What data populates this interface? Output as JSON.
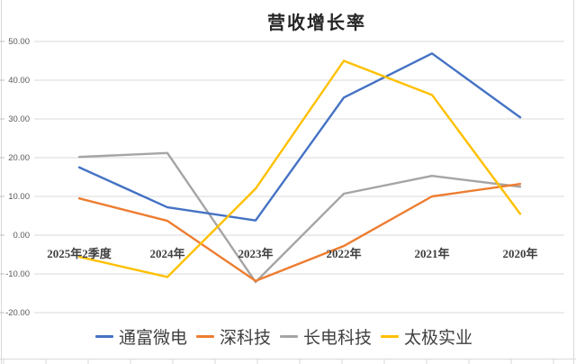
{
  "chart_data": {
    "type": "line",
    "title": "营收增长率",
    "xlabel": "",
    "ylabel": "",
    "categories": [
      "2025年2季度",
      "2024年",
      "2023年",
      "2022年",
      "2021年",
      "2020年"
    ],
    "series": [
      {
        "name": "通富微电",
        "color": "#4472C4",
        "values": [
          17.5,
          7.2,
          3.8,
          35.5,
          46.9,
          30.4
        ]
      },
      {
        "name": "深科技",
        "color": "#ED7D31",
        "values": [
          9.5,
          3.7,
          -11.8,
          -2.8,
          10.0,
          13.2
        ]
      },
      {
        "name": "长电科技",
        "color": "#A5A5A5",
        "values": [
          20.2,
          21.2,
          -12.1,
          10.7,
          15.3,
          12.5
        ]
      },
      {
        "name": "太极实业",
        "color": "#FFC000",
        "values": [
          -5.6,
          -10.8,
          12.0,
          45.0,
          36.2,
          5.5
        ]
      }
    ],
    "ylim": [
      -20,
      50
    ],
    "yticks": {
      "values": [
        50,
        40,
        30,
        20,
        10,
        0,
        -10,
        -20
      ],
      "labels": [
        "50.00",
        "40.00",
        "30.00",
        "20.00",
        "10.00",
        "0.00",
        "-10.00",
        "-20.00"
      ]
    },
    "grid": true,
    "gridline_color": "#D9D9D9",
    "legend_position": "bottom"
  }
}
